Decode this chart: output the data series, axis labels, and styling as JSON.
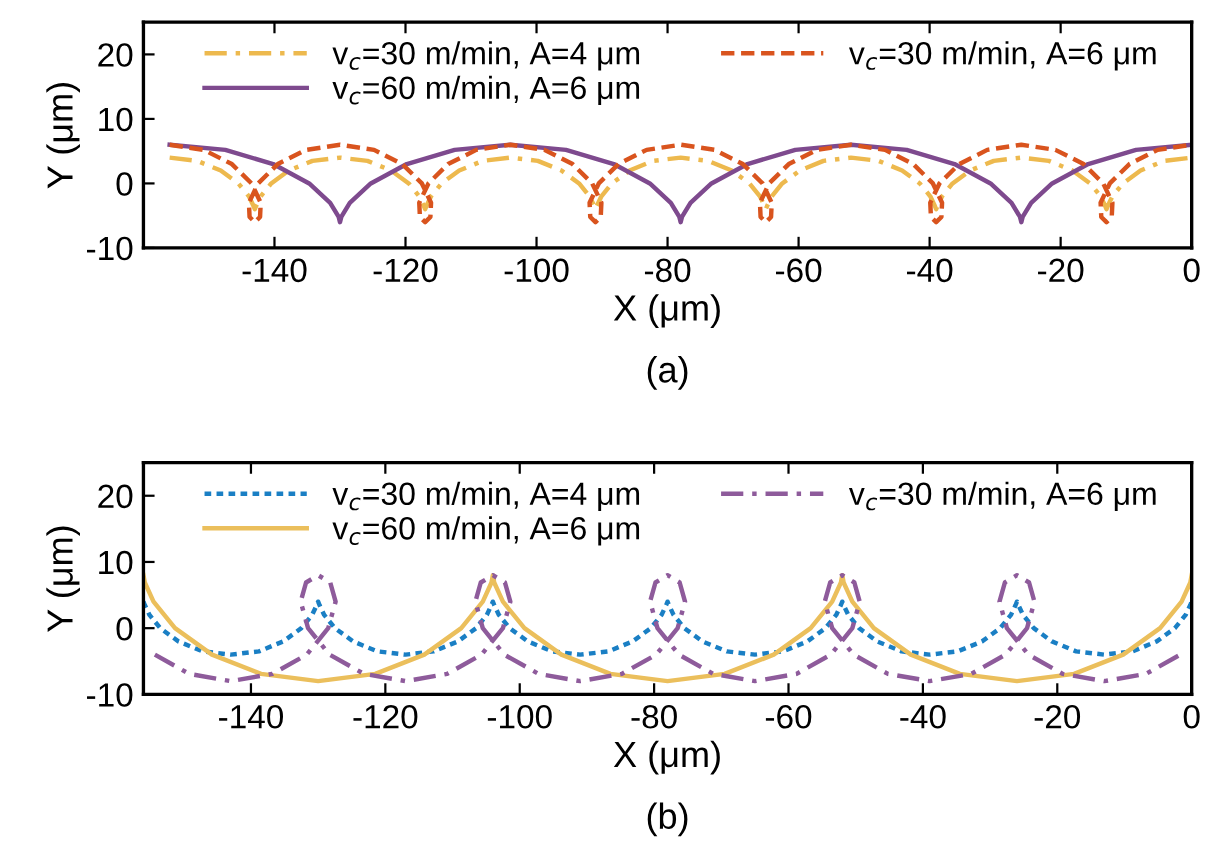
{
  "chart_data": [
    {
      "type": "line",
      "title": "(a)",
      "xlabel": "X (μm)",
      "ylabel": "Y (μm)",
      "xlim": [
        -160,
        0
      ],
      "ylim": [
        -10,
        25
      ],
      "xticks": [
        -140,
        -120,
        -100,
        -80,
        -60,
        -40,
        -20,
        0
      ],
      "yticks": [
        -10,
        0,
        10,
        20
      ],
      "grid": false,
      "legend": "top left",
      "marker": "none",
      "series": [
        {
          "name": "v$_{c}$=30 m/min, A=4 μm",
          "color": "#edb94e",
          "line_style": "dashdot",
          "x": [
            -156,
            -151.8,
            -148.2,
            -145.5,
            -143.9,
            -143.2,
            -143,
            -142.8,
            -142.1,
            -140.5,
            -137.8,
            -134.2,
            -130,
            -125.8,
            -122.2,
            -119.5,
            -117.9,
            -117.2,
            -117,
            -116.8,
            -116.1,
            -114.5,
            -111.8,
            -108.2,
            -104,
            -99.8,
            -96.2,
            -93.5,
            -91.9,
            -91.2,
            -91,
            -90.8,
            -90.1,
            -88.5,
            -85.8,
            -82.2,
            -78,
            -73.8,
            -70.2,
            -67.5,
            -65.9,
            -65.2,
            -65,
            -64.8,
            -64.1,
            -62.5,
            -59.8,
            -56.2,
            -52,
            -47.8,
            -44.2,
            -41.5,
            -39.9,
            -39.2,
            -39,
            -38.8,
            -38.1,
            -36.5,
            -33.8,
            -30.2,
            -26,
            -21.8,
            -18.2,
            -15.5,
            -13.9,
            -13.2,
            -13,
            -12.8,
            -12.1,
            -10.5,
            -7.8,
            -4.2,
            0
          ],
          "values": [
            4,
            3.5,
            2,
            0,
            -2,
            -3.5,
            -4,
            -3.5,
            -2,
            0,
            2,
            3.5,
            4,
            3.5,
            2,
            0,
            -2,
            -3.5,
            -4,
            -3.5,
            -2,
            0,
            2,
            3.5,
            4,
            3.5,
            2,
            0,
            -2,
            -3.5,
            -4,
            -3.5,
            -2,
            0,
            2,
            3.5,
            4,
            3.5,
            2,
            0,
            -2,
            -3.5,
            -4,
            -3.5,
            -2,
            0,
            2,
            3.5,
            4,
            3.5,
            2,
            0,
            -2,
            -3.5,
            -4,
            -3.5,
            -2,
            0,
            2,
            3.5,
            4,
            3.5,
            2,
            0,
            -2,
            -3.5,
            -4,
            -3.5,
            -2,
            0,
            2,
            3.5,
            4
          ]
        },
        {
          "name": "v$_{c}$=60 m/min, A=6 μm",
          "color": "#7e4a8e",
          "line_style": "solid",
          "x": [
            -156,
            -147.5,
            -140.2,
            -134.7,
            -131.5,
            -130.2,
            -130,
            -129.8,
            -128.5,
            -125.3,
            -119.8,
            -112.5,
            -104,
            -95.5,
            -88.2,
            -82.7,
            -79.5,
            -78.2,
            -78,
            -77.8,
            -76.5,
            -73.3,
            -67.8,
            -60.5,
            -52,
            -43.5,
            -36.2,
            -30.7,
            -27.5,
            -26.2,
            -26,
            -25.8,
            -24.5,
            -21.3,
            -15.8,
            -8.5,
            0
          ],
          "values": [
            6,
            5.2,
            3,
            0,
            -3,
            -5.2,
            -6,
            -5.2,
            -3,
            0,
            3,
            5.2,
            6,
            5.2,
            3,
            0,
            -3,
            -5.2,
            -6,
            -5.2,
            -3,
            0,
            3,
            5.2,
            6,
            5.2,
            3,
            0,
            -3,
            -5.2,
            -6,
            -5.2,
            -3,
            0,
            3,
            5.2,
            6
          ]
        },
        {
          "name": "v$_{c}$=30 m/min, A=6 μm",
          "color": "#d9541e",
          "line_style": "dashed",
          "x": [
            -156,
            -150.8,
            -146.5,
            -143.5,
            -142.1,
            -142.2,
            -143,
            -143.8,
            -143.9,
            -142.5,
            -139.5,
            -135.2,
            -130,
            -124.8,
            -120.5,
            -117.5,
            -116.1,
            -116.2,
            -117,
            -117.8,
            -117.9,
            -116.5,
            -113.5,
            -109.2,
            -104,
            -98.8,
            -94.5,
            -91.5,
            -90.1,
            -90.2,
            -91,
            -91.8,
            -91.9,
            -90.5,
            -87.5,
            -83.2,
            -78,
            -72.8,
            -68.5,
            -65.5,
            -64.1,
            -64.2,
            -65,
            -65.8,
            -65.9,
            -64.5,
            -61.5,
            -57.2,
            -52,
            -46.8,
            -42.5,
            -39.5,
            -38.1,
            -38.2,
            -39,
            -39.8,
            -39.9,
            -38.5,
            -35.5,
            -31.2,
            -26,
            -20.8,
            -16.5,
            -13.5,
            -12.1,
            -12.2,
            -13,
            -13.8,
            -13.9,
            -12.5,
            -9.5,
            -5.2,
            0
          ],
          "values": [
            6,
            5.2,
            3,
            0,
            -3,
            -5.2,
            -6,
            -5.2,
            -3,
            0,
            3,
            5.2,
            6,
            5.2,
            3,
            0,
            -3,
            -5.2,
            -6,
            -5.2,
            -3,
            0,
            3,
            5.2,
            6,
            5.2,
            3,
            0,
            -3,
            -5.2,
            -6,
            -5.2,
            -3,
            0,
            3,
            5.2,
            6,
            5.2,
            3,
            0,
            -3,
            -5.2,
            -6,
            -5.2,
            -3,
            0,
            3,
            5.2,
            6,
            5.2,
            3,
            0,
            -3,
            -5.2,
            -6,
            -5.2,
            -3,
            0,
            3,
            5.2,
            6,
            5.2,
            3,
            0,
            -3,
            -5.2,
            -6,
            -5.2,
            -3,
            0,
            3,
            5.2,
            6
          ]
        }
      ]
    },
    {
      "type": "line",
      "title": "(b)",
      "xlabel": "X (μm)",
      "ylabel": "Y (μm)",
      "xlim": [
        -156,
        0
      ],
      "ylim": [
        -10,
        25
      ],
      "xticks": [
        -140,
        -120,
        -100,
        -80,
        -60,
        -40,
        -20,
        0
      ],
      "yticks": [
        -10,
        0,
        10,
        20
      ],
      "grid": false,
      "legend": "top left",
      "marker": "none",
      "series": [
        {
          "name": "v$_{c}$=30 m/min, A=4 μm",
          "color": "#1a7fc4",
          "line_style": "dotted",
          "x": [
            -156,
            -155.8,
            -155.1,
            -153.5,
            -150.8,
            -147.2,
            -143,
            -138.8,
            -135.2,
            -132.5,
            -130.9,
            -130.2,
            -130,
            -129.8,
            -129.1,
            -127.5,
            -124.8,
            -121.2,
            -117,
            -112.8,
            -109.2,
            -106.5,
            -104.9,
            -104.2,
            -104,
            -103.8,
            -103.1,
            -101.5,
            -98.8,
            -95.2,
            -91,
            -86.8,
            -83.2,
            -80.5,
            -78.9,
            -78.2,
            -78,
            -77.8,
            -77.1,
            -75.5,
            -72.8,
            -69.2,
            -65,
            -60.8,
            -57.2,
            -54.5,
            -52.9,
            -52.2,
            -52,
            -51.8,
            -51.1,
            -49.5,
            -46.8,
            -43.2,
            -39,
            -34.8,
            -31.2,
            -28.5,
            -26.9,
            -26.2,
            -26,
            -25.8,
            -25.1,
            -23.5,
            -20.8,
            -17.2,
            -13,
            -8.8,
            -5.2,
            -2.5,
            -0.9,
            -0.2,
            0
          ],
          "values": [
            4,
            3.5,
            2,
            0,
            -2,
            -3.5,
            -4,
            -3.5,
            -2,
            0,
            2,
            3.5,
            4,
            3.5,
            2,
            0,
            -2,
            -3.5,
            -4,
            -3.5,
            -2,
            0,
            2,
            3.5,
            4,
            3.5,
            2,
            0,
            -2,
            -3.5,
            -4,
            -3.5,
            -2,
            0,
            2,
            3.5,
            4,
            3.5,
            2,
            0,
            -2,
            -3.5,
            -4,
            -3.5,
            -2,
            0,
            2,
            3.5,
            4,
            3.5,
            2,
            0,
            -2,
            -3.5,
            -4,
            -3.5,
            -2,
            0,
            2,
            3.5,
            4,
            3.5,
            2,
            0,
            -2,
            -3.5,
            -4,
            -3.5,
            -2,
            0,
            2,
            3.5,
            4
          ]
        },
        {
          "name": "v$_{c}$=60 m/min, A=6 μm",
          "color": "#ebbf5c",
          "line_style": "solid",
          "x": [
            -156,
            -155.8,
            -154.5,
            -151.3,
            -145.8,
            -138.5,
            -130,
            -121.5,
            -114.2,
            -108.7,
            -105.5,
            -104.2,
            -104,
            -103.8,
            -102.5,
            -99.3,
            -93.8,
            -86.5,
            -78,
            -69.5,
            -62.2,
            -56.7,
            -53.5,
            -52.2,
            -52,
            -51.8,
            -50.5,
            -47.3,
            -41.8,
            -34.5,
            -26,
            -17.5,
            -10.2,
            -4.7,
            -1.5,
            -0.2,
            0
          ],
          "values": [
            8,
            6.9,
            4,
            0,
            -4,
            -6.9,
            -8,
            -6.9,
            -4,
            0,
            4,
            6.9,
            8,
            6.9,
            4,
            0,
            -4,
            -6.9,
            -8,
            -6.9,
            -4,
            0,
            4,
            6.9,
            8,
            6.9,
            4,
            0,
            -4,
            -6.9,
            -8,
            -6.9,
            -4,
            0,
            4,
            6.9,
            8
          ]
        },
        {
          "name": "v$_{c}$=30 m/min, A=6 μm",
          "color": "#8e5b9b",
          "line_style": "dashdot",
          "x": [
            -154.3,
            -149.2,
            -143,
            -136.8,
            -131.7,
            -128.5,
            -127.4,
            -128.2,
            -130,
            -131.8,
            -132.6,
            -131.5,
            -128.3,
            -123.2,
            -117,
            -110.8,
            -105.7,
            -102.5,
            -101.4,
            -102.2,
            -104,
            -105.8,
            -106.6,
            -105.5,
            -102.3,
            -97.2,
            -91,
            -84.8,
            -79.7,
            -76.5,
            -75.4,
            -76.2,
            -78,
            -79.8,
            -80.6,
            -79.5,
            -76.3,
            -71.2,
            -65,
            -58.8,
            -53.7,
            -50.5,
            -49.4,
            -50.2,
            -52,
            -53.8,
            -54.6,
            -53.5,
            -50.3,
            -45.2,
            -39,
            -32.8,
            -27.7,
            -24.5,
            -23.4,
            -24.2,
            -26,
            -27.8,
            -28.6,
            -27.5,
            -24.3,
            -19.2,
            -13,
            -6.8,
            -1.7
          ],
          "values": [
            -4,
            -6.9,
            -8,
            -6.9,
            -4,
            0,
            4,
            6.9,
            8,
            6.9,
            4,
            0,
            -4,
            -6.9,
            -8,
            -6.9,
            -4,
            0,
            4,
            6.9,
            8,
            6.9,
            4,
            0,
            -4,
            -6.9,
            -8,
            -6.9,
            -4,
            0,
            4,
            6.9,
            8,
            6.9,
            4,
            0,
            -4,
            -6.9,
            -8,
            -6.9,
            -4,
            0,
            4,
            6.9,
            8,
            6.9,
            4,
            0,
            -4,
            -6.9,
            -8,
            -6.9,
            -4,
            0,
            4,
            6.9,
            8,
            6.9,
            4,
            0,
            -4,
            -6.9,
            -8,
            -6.9,
            -4
          ]
        }
      ]
    }
  ]
}
